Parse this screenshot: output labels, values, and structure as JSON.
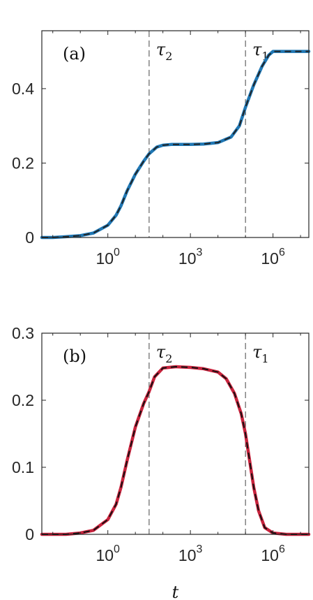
{
  "chart_data": [
    {
      "type": "line",
      "panel_label": "(a)",
      "xscale": "log",
      "xlim": [
        0.004,
        20000000
      ],
      "ylim": [
        0,
        0.5556
      ],
      "xticks": [
        {
          "value": 1,
          "base": "10",
          "exp": "0"
        },
        {
          "value": 1000,
          "base": "10",
          "exp": "3"
        },
        {
          "value": 1000000,
          "base": "10",
          "exp": "6"
        }
      ],
      "yticks": [
        {
          "value": 0,
          "label": "0"
        },
        {
          "value": 0.2,
          "label": "0.2"
        },
        {
          "value": 0.4,
          "label": "0.4"
        }
      ],
      "vlines": [
        {
          "x": 31.6,
          "label": "τ",
          "sub": "2"
        },
        {
          "x": 100000,
          "label": "τ",
          "sub": "1"
        }
      ],
      "series": [
        {
          "color_solid": "#1f77b4",
          "color_dashed": "#222222",
          "x": [
            0.004,
            0.01,
            0.03,
            0.1,
            0.3,
            1,
            2,
            3,
            5,
            10,
            20,
            31.6,
            60,
            100,
            200,
            500,
            1000,
            3000,
            10000,
            30000,
            60000,
            100000,
            200000,
            400000,
            700000,
            1000000,
            3000000,
            20000000
          ],
          "y": [
            0.0,
            0.0,
            0.002,
            0.005,
            0.012,
            0.033,
            0.06,
            0.085,
            0.125,
            0.17,
            0.205,
            0.225,
            0.243,
            0.248,
            0.25,
            0.25,
            0.25,
            0.251,
            0.255,
            0.27,
            0.3,
            0.35,
            0.41,
            0.46,
            0.49,
            0.5,
            0.5,
            0.5
          ]
        }
      ],
      "grid": false
    },
    {
      "type": "line",
      "panel_label": "(b)",
      "xscale": "log",
      "xlim": [
        0.004,
        20000000
      ],
      "ylim": [
        0,
        0.3
      ],
      "xticks": [
        {
          "value": 1,
          "base": "10",
          "exp": "0"
        },
        {
          "value": 1000,
          "base": "10",
          "exp": "3"
        },
        {
          "value": 1000000,
          "base": "10",
          "exp": "6"
        }
      ],
      "yticks": [
        {
          "value": 0,
          "label": "0"
        },
        {
          "value": 0.1,
          "label": "0.1"
        },
        {
          "value": 0.2,
          "label": "0.2"
        },
        {
          "value": 0.3,
          "label": "0.3"
        }
      ],
      "xlabel": "t",
      "vlines": [
        {
          "x": 31.6,
          "label": "τ",
          "sub": "2"
        },
        {
          "x": 100000,
          "label": "τ",
          "sub": "1"
        }
      ],
      "series": [
        {
          "color_solid": "#c8223c",
          "color_dashed": "#111111",
          "x": [
            0.004,
            0.01,
            0.03,
            0.1,
            0.3,
            1,
            2,
            3,
            5,
            10,
            20,
            31.6,
            50,
            100,
            300,
            1000,
            3000,
            10000,
            20000,
            40000,
            70000,
            100000,
            200000,
            300000,
            500000,
            1000000,
            3000000,
            20000000
          ],
          "y": [
            0.0,
            0.0,
            0.0,
            0.002,
            0.006,
            0.022,
            0.045,
            0.07,
            0.11,
            0.16,
            0.195,
            0.213,
            0.235,
            0.248,
            0.25,
            0.249,
            0.247,
            0.242,
            0.232,
            0.21,
            0.18,
            0.15,
            0.07,
            0.035,
            0.01,
            0.002,
            0.0,
            0.0
          ]
        }
      ],
      "grid": false
    }
  ]
}
